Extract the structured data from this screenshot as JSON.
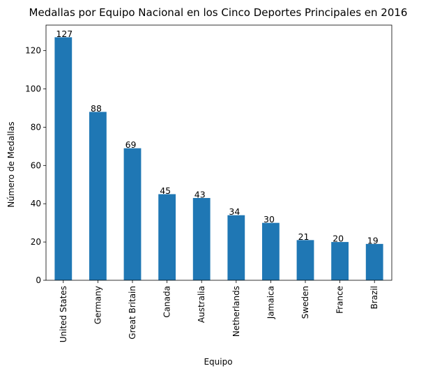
{
  "chart_data": {
    "type": "bar",
    "title": "Medallas por Equipo Nacional en los Cinco Deportes Principales en 2016",
    "xlabel": "Equipo",
    "ylabel": "Número de Medallas",
    "categories": [
      "United States",
      "Germany",
      "Great Britain",
      "Canada",
      "Australia",
      "Netherlands",
      "Jamaica",
      "Sweden",
      "France",
      "Brazil"
    ],
    "values": [
      127,
      88,
      69,
      45,
      43,
      34,
      30,
      21,
      20,
      19
    ],
    "ylim": [
      0,
      133.35
    ],
    "yticks": [
      0,
      20,
      40,
      60,
      80,
      100,
      120
    ],
    "grid": false,
    "legend": "none",
    "bar_color": "#1f77b4"
  }
}
